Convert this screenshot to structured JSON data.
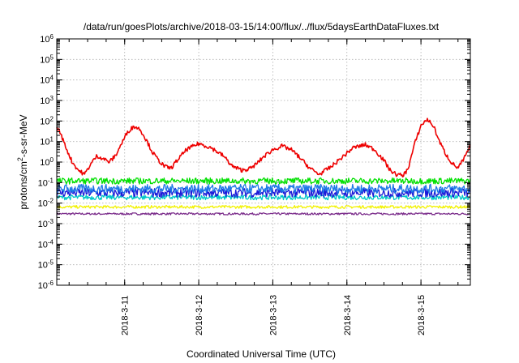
{
  "chart_data": {
    "type": "line",
    "title": "/data/run/goesPlots/archive/2018-03-15/14:00/flux/../flux/5daysEarthDataFluxes.txt",
    "xlabel": "Coordinated Universal Time (UTC)",
    "ylabel": "protons/cm²-s-sr-MeV",
    "ylabel_base": "protons/cm",
    "ylabel_sup": "2",
    "ylabel_rest": "-s-sr-MeV",
    "y_scale": "log",
    "ylim": [
      1e-06,
      1000000.0
    ],
    "xlim": [
      "2018-03-10 02:00",
      "2018-03-15 16:00"
    ],
    "y_ticks": [
      {
        "value": 1e-06,
        "base": "10",
        "exp": "-6"
      },
      {
        "value": 1e-05,
        "base": "10",
        "exp": "-5"
      },
      {
        "value": 0.0001,
        "base": "10",
        "exp": "-4"
      },
      {
        "value": 0.001,
        "base": "10",
        "exp": "-3"
      },
      {
        "value": 0.01,
        "base": "10",
        "exp": "-2"
      },
      {
        "value": 0.1,
        "base": "10",
        "exp": "-1"
      },
      {
        "value": 1,
        "base": "10",
        "exp": "0"
      },
      {
        "value": 10,
        "base": "10",
        "exp": "1"
      },
      {
        "value": 100,
        "base": "10",
        "exp": "2"
      },
      {
        "value": 1000,
        "base": "10",
        "exp": "3"
      },
      {
        "value": 10000,
        "base": "10",
        "exp": "4"
      },
      {
        "value": 100000,
        "base": "10",
        "exp": "5"
      },
      {
        "value": 1000000,
        "base": "10",
        "exp": "6"
      }
    ],
    "x_ticks": [
      {
        "value": "2018-03-11 00:00",
        "label": "2018-3-11"
      },
      {
        "value": "2018-03-12 00:00",
        "label": "2018-3-12"
      },
      {
        "value": "2018-03-13 00:00",
        "label": "2018-3-13"
      },
      {
        "value": "2018-03-14 00:00",
        "label": "2018-3-14"
      },
      {
        "value": "2018-03-15 00:00",
        "label": "2018-3-15"
      }
    ],
    "grid": true,
    "series": [
      {
        "color": "#7b2d8b",
        "level": 0.003,
        "noise": 0.05
      },
      {
        "color": "#f2f200",
        "level": 0.0065,
        "noise": 0.07
      },
      {
        "color": "#00c8c8",
        "level": 0.019,
        "noise": 0.12
      },
      {
        "color": "#1a1ad8",
        "level": 0.032,
        "noise": 0.22
      },
      {
        "color": "#1f7ae8",
        "level": 0.05,
        "noise": 0.22
      },
      {
        "color": "#00e000",
        "level": 0.12,
        "noise": 0.15
      },
      {
        "color": "#ee0000",
        "noise": 0.1,
        "x": [
          "2018-03-10 02:00",
          "2018-03-10 03:00",
          "2018-03-10 05:00",
          "2018-03-10 07:00",
          "2018-03-10 09:00",
          "2018-03-10 11:00",
          "2018-03-10 13:00",
          "2018-03-10 15:00",
          "2018-03-10 17:00",
          "2018-03-10 19:00",
          "2018-03-10 21:00",
          "2018-03-10 23:00",
          "2018-03-11 01:00",
          "2018-03-11 03:00",
          "2018-03-11 05:00",
          "2018-03-11 07:00",
          "2018-03-11 09:00",
          "2018-03-11 11:00",
          "2018-03-11 13:00",
          "2018-03-11 15:00",
          "2018-03-11 17:00",
          "2018-03-11 20:00",
          "2018-03-12 00:00",
          "2018-03-12 04:00",
          "2018-03-12 08:00",
          "2018-03-12 11:00",
          "2018-03-12 14:00",
          "2018-03-12 17:00",
          "2018-03-12 19:00",
          "2018-03-12 21:00",
          "2018-03-13 00:00",
          "2018-03-13 03:00",
          "2018-03-13 06:00",
          "2018-03-13 09:00",
          "2018-03-13 12:00",
          "2018-03-13 15:00",
          "2018-03-13 19:00",
          "2018-03-13 23:00",
          "2018-03-14 02:00",
          "2018-03-14 06:00",
          "2018-03-14 09:00",
          "2018-03-14 12:00",
          "2018-03-14 14:00",
          "2018-03-14 16:00",
          "2018-03-14 18:00",
          "2018-03-14 19:00",
          "2018-03-14 20:00",
          "2018-03-14 22:00",
          "2018-03-15 00:00",
          "2018-03-15 02:00",
          "2018-03-15 04:00",
          "2018-03-15 06:00",
          "2018-03-15 08:00",
          "2018-03-15 10:00",
          "2018-03-15 12:00",
          "2018-03-15 14:00",
          "2018-03-15 16:00"
        ],
        "values": [
          50,
          30,
          5,
          1,
          0.4,
          0.25,
          0.8,
          2,
          1.5,
          1,
          2,
          8,
          30,
          55,
          40,
          12,
          3,
          1.2,
          0.6,
          0.5,
          1.2,
          4,
          8,
          5,
          2,
          0.6,
          0.4,
          0.5,
          0.9,
          1.8,
          4,
          6,
          4,
          1.5,
          0.5,
          0.25,
          0.6,
          2,
          5,
          7,
          4,
          1.2,
          0.4,
          0.25,
          0.22,
          0.3,
          0.6,
          8,
          60,
          120,
          60,
          10,
          2.5,
          0.9,
          0.5,
          1.5,
          6
        ]
      }
    ]
  }
}
